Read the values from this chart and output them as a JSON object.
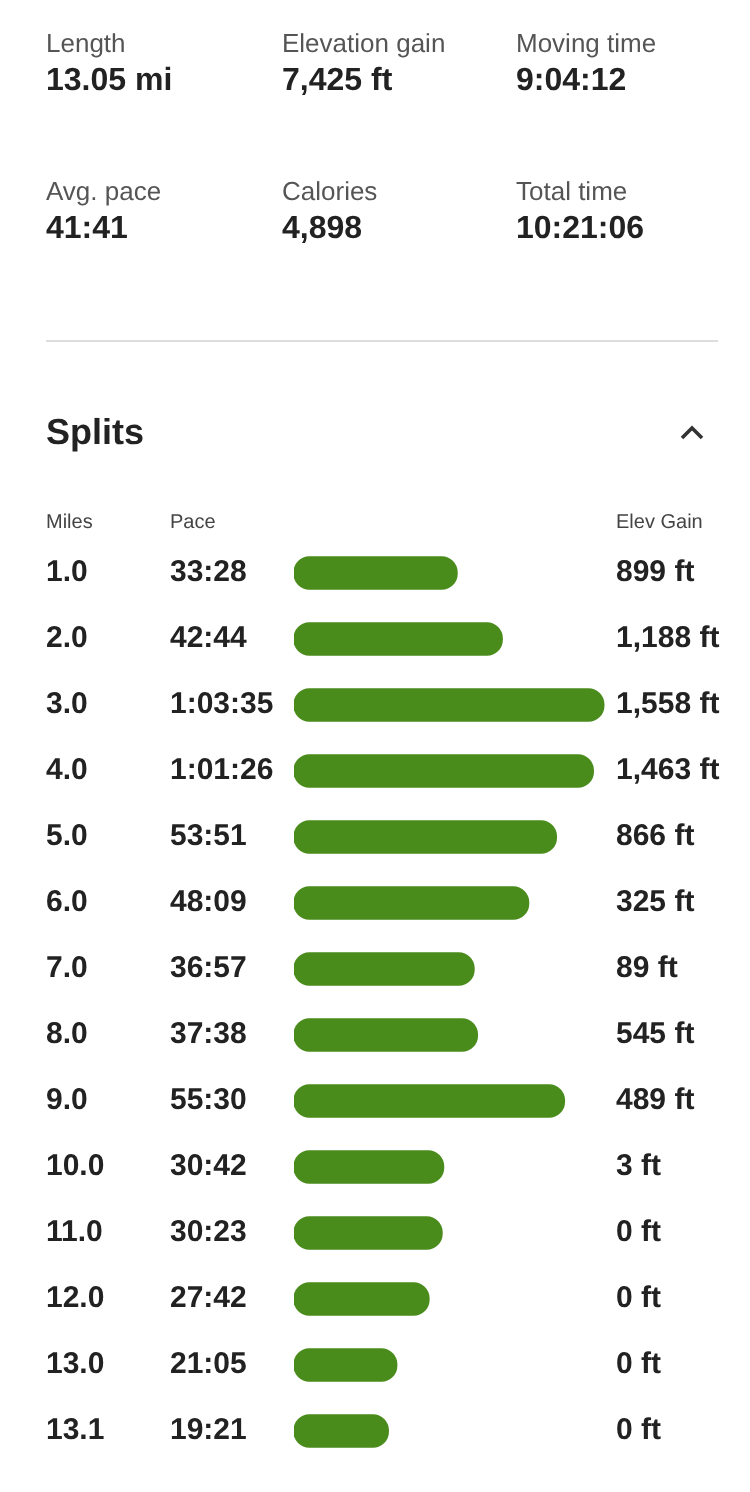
{
  "chart_data": {
    "type": "bar",
    "orientation": "horizontal",
    "title": "Splits",
    "ylabel": "Miles",
    "xlabel": "Pace",
    "y2label": "Elev Gain",
    "categories": [
      "1.0",
      "2.0",
      "3.0",
      "4.0",
      "5.0",
      "6.0",
      "7.0",
      "8.0",
      "9.0",
      "10.0",
      "11.0",
      "12.0",
      "13.0",
      "13.1"
    ],
    "values": [
      2008,
      2564,
      3815,
      3686,
      3231,
      2889,
      2217,
      2258,
      3330,
      1842,
      1823,
      1662,
      1265,
      1161
    ],
    "value_labels": [
      "33:28",
      "42:44",
      "1:03:35",
      "1:01:26",
      "53:51",
      "48:09",
      "36:57",
      "37:38",
      "55:30",
      "30:42",
      "30:23",
      "27:42",
      "21:05",
      "19:21"
    ],
    "color": "#4a8c1c",
    "legend": false,
    "annotations": [
      "Length",
      "13.05 mi",
      "Elevation gain",
      "7,425 ft",
      "Moving time",
      "9:04:12",
      "Avg. pace",
      "41:41",
      "Calories",
      "4,898",
      "Total time",
      "10:21:06",
      "899 ft",
      "1,188 ft",
      "1,558 ft",
      "1,463 ft",
      "866 ft",
      "325 ft",
      "89 ft",
      "545 ft",
      "489 ft",
      "3 ft",
      "0 ft",
      "0 ft",
      "0 ft",
      "0 ft"
    ]
  }
}
